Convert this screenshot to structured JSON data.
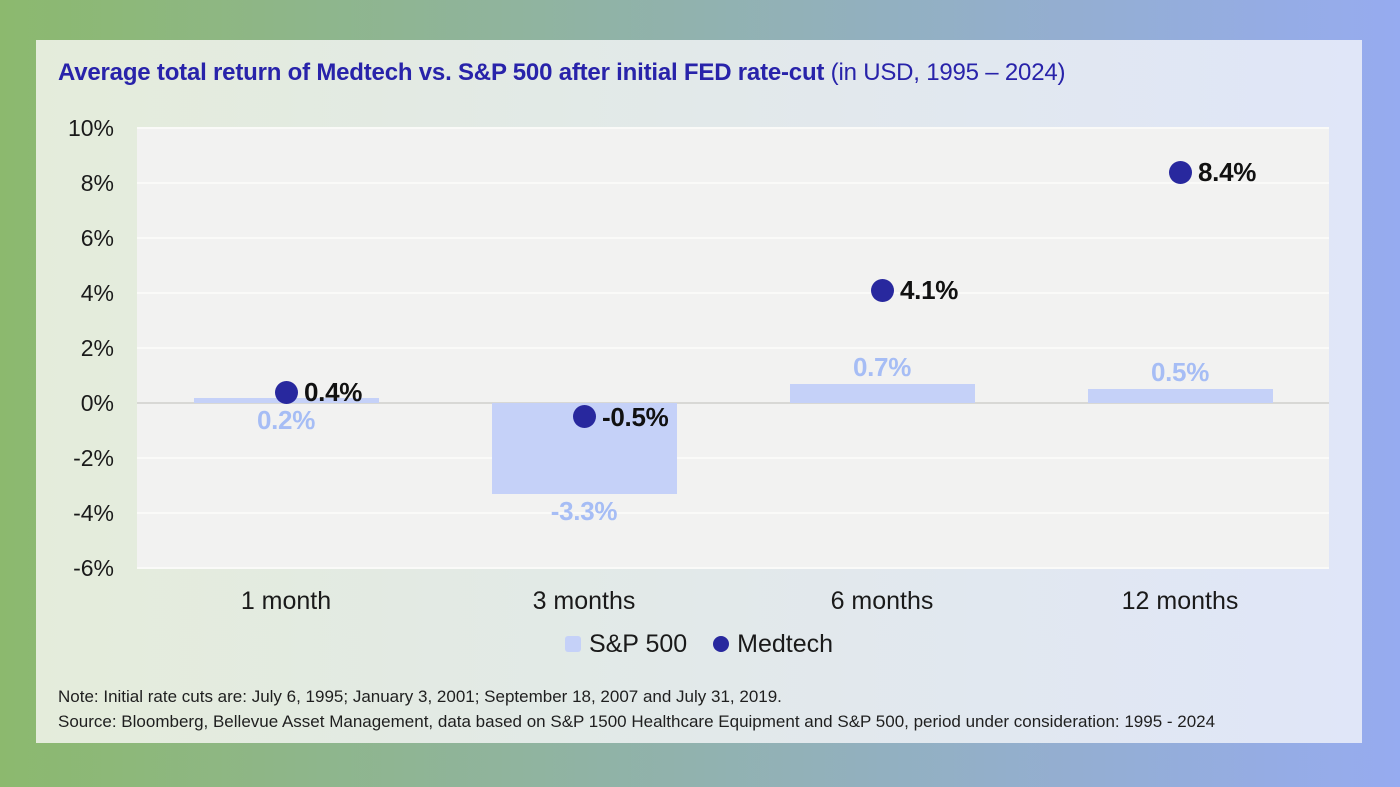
{
  "title": {
    "main": "Average total return of Medtech vs. S&P 500 after initial FED rate-cut",
    "suffix": " (in USD, 1995 – 2024)"
  },
  "chart_data": {
    "type": "bar",
    "categories": [
      "1 month",
      "3 months",
      "6 months",
      "12 months"
    ],
    "series": [
      {
        "name": "S&P 500",
        "render": "bar",
        "color": "#c5d1f8",
        "values": [
          0.2,
          -3.3,
          0.7,
          0.5
        ],
        "labels": [
          "0.2%",
          "-3.3%",
          "0.7%",
          "0.5%"
        ]
      },
      {
        "name": "Medtech",
        "render": "point",
        "color": "#28289e",
        "values": [
          0.4,
          -0.5,
          4.1,
          8.4
        ],
        "labels": [
          "0.4%",
          "-0.5%",
          "4.1%",
          "8.4%"
        ]
      }
    ],
    "xlabel": "",
    "ylabel": "",
    "ylim": [
      -6,
      10
    ],
    "ytick_values": [
      10,
      8,
      6,
      4,
      2,
      0,
      -2,
      -4,
      -6
    ],
    "ytick_labels": [
      "10%",
      "8%",
      "6%",
      "4%",
      "2%",
      "0%",
      "-2%",
      "-4%",
      "-6%"
    ],
    "grid": true,
    "legend_position": "bottom",
    "bar_label_side": [
      "below",
      "below",
      "above",
      "above"
    ]
  },
  "notes": {
    "line1": "Note: Initial rate cuts are: July 6, 1995; January 3, 2001; September 18, 2007 and July 31, 2019.",
    "line2": "Source: Bloomberg, Bellevue Asset Management, data based on S&P 1500 Healthcare Equipment and S&P 500, period under consideration: 1995 - 2024"
  },
  "colors": {
    "background_left": "#8cb96e",
    "background_right": "#96abf0",
    "card_left": "#e4ecdb",
    "card_right": "#e0e6f8",
    "plot_background": "#f2f2f1",
    "gridline": "#fafaf8",
    "zero_line": "#d8d8d5",
    "sp500_bar": "#c5d1f8",
    "sp500_label": "#a6bdf5",
    "medtech_dot": "#28289e",
    "title_text": "#2823aa",
    "body_text": "#1a1a1a"
  }
}
